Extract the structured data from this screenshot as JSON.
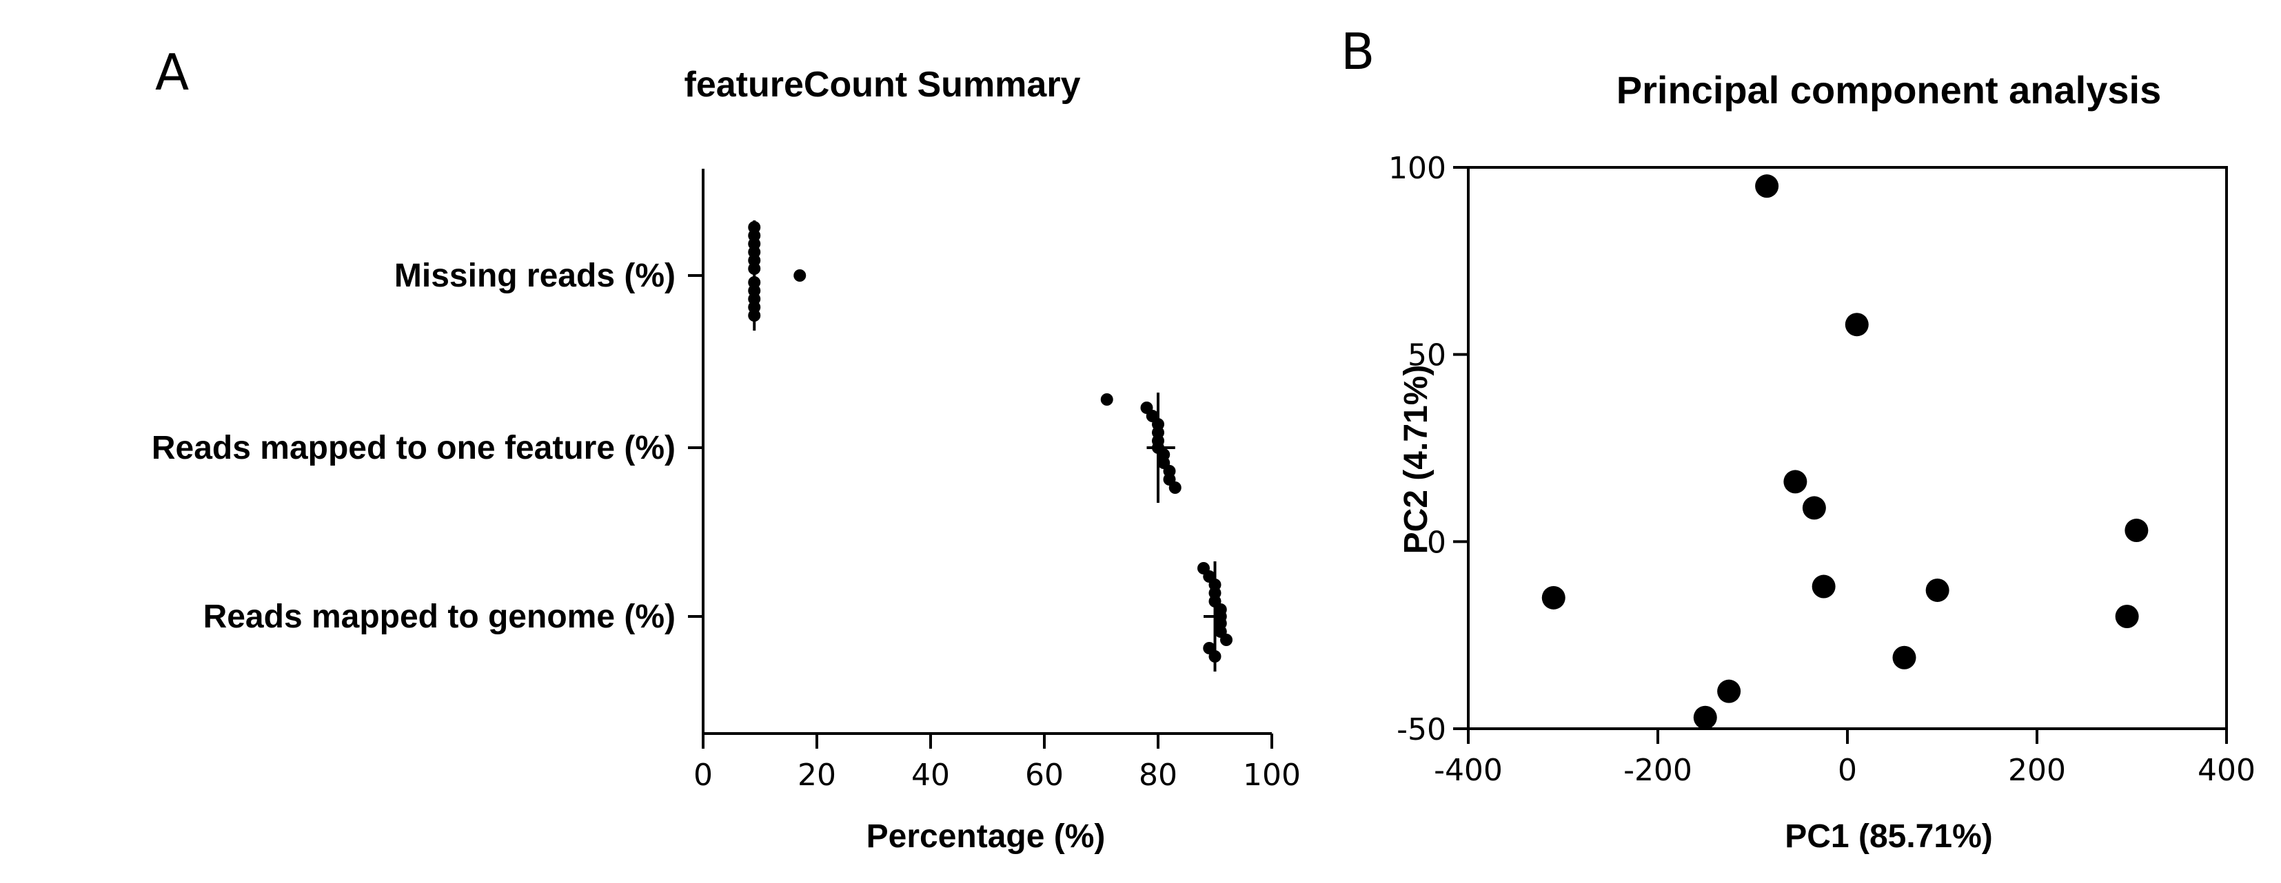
{
  "panels": {
    "A": {
      "letter": "A"
    },
    "B": {
      "letter": "B"
    }
  },
  "chart_data": [
    {
      "type": "scatter",
      "orientation": "horizontal",
      "title": "featureCount Summary",
      "xlabel": "Percentage (%)",
      "ylabel": "",
      "xlim": [
        0,
        100
      ],
      "xticks": [
        0,
        20,
        40,
        60,
        80,
        100
      ],
      "categories": [
        "Missing reads (%)",
        "Reads mapped to one feature (%)",
        "Reads mapped to genome (%)"
      ],
      "series": [
        {
          "category": "Missing reads (%)",
          "values": [
            9,
            9,
            9,
            9,
            9,
            9,
            9,
            9,
            9,
            9,
            9,
            17
          ],
          "range": [
            9,
            9
          ],
          "median": 9
        },
        {
          "category": "Reads mapped to one feature (%)",
          "values": [
            71,
            78,
            79,
            80,
            80,
            80,
            81,
            81,
            82,
            82,
            83,
            80
          ],
          "range": [
            78,
            83
          ],
          "median": 80
        },
        {
          "category": "Reads mapped to genome (%)",
          "values": [
            88,
            89,
            90,
            90,
            90,
            91,
            91,
            91,
            92,
            89,
            90,
            91
          ],
          "range": [
            88,
            92
          ],
          "median": 90
        }
      ],
      "grid": false,
      "marker_color": "#000000"
    },
    {
      "type": "scatter",
      "title": "Principal component analysis",
      "xlabel": "PC1 (85.71%)",
      "ylabel": "PC2 (4.71%)",
      "xlim": [
        -400,
        400
      ],
      "ylim": [
        -50,
        100
      ],
      "xticks": [
        -400,
        -200,
        0,
        200,
        400
      ],
      "yticks": [
        -50,
        0,
        50,
        100
      ],
      "points": [
        {
          "x": -85,
          "y": 95
        },
        {
          "x": 10,
          "y": 58
        },
        {
          "x": -55,
          "y": 16
        },
        {
          "x": -35,
          "y": 9
        },
        {
          "x": -25,
          "y": -12
        },
        {
          "x": 95,
          "y": -13
        },
        {
          "x": 60,
          "y": -31
        },
        {
          "x": 305,
          "y": 3
        },
        {
          "x": 295,
          "y": -20
        },
        {
          "x": -310,
          "y": -15
        },
        {
          "x": -125,
          "y": -40
        },
        {
          "x": -150,
          "y": -47
        }
      ],
      "grid": false,
      "marker_color": "#000000"
    }
  ]
}
